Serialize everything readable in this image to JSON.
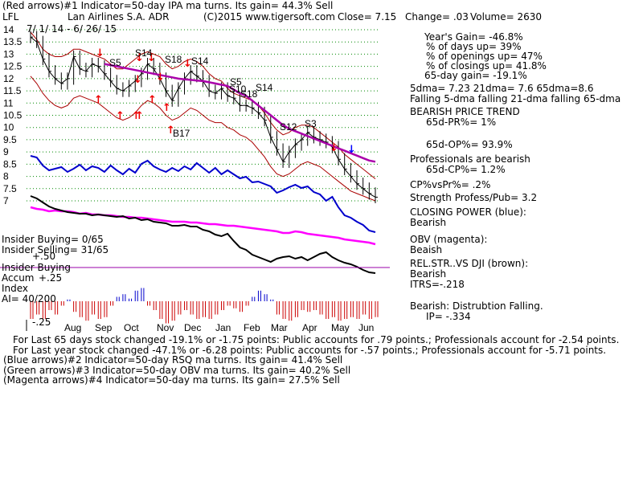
{
  "header": {
    "line1": "(Red arrows)#1 Indicator=50-day IPA ma turns. Its gain= 44.3% Sell",
    "symbol": "LFL",
    "company": "Lan Airlines S.A. ADR",
    "copyright": "(C)2015 www.tigersoft.com",
    "close": "Close=  7.15",
    "change": "Change= .03",
    "volume": "Volume= 2630",
    "date_range": "7/ 1/ 14 - 6/ 26/ 15"
  },
  "right_panel": {
    "years_gain": "Year's Gain= -46.8%",
    "days_up": "% of days up= 39%",
    "openings_up": "% of openings up= 47%",
    "closings_up": "% of closings up= 41.8%",
    "gain_65": "65-day gain= -19.1%",
    "dma": "5dma= 7.23 21dma= 7.6 65dma=8.6",
    "falling": "Falling 5-dma falling 21-dma falling 65-dma",
    "bearish_trend": "BEARISH PRICE TREND",
    "pr65": "65d-PR%= 1%",
    "op65": "65d-OP%= 93.9%",
    "professionals": "Professionals are bearish",
    "cp65": "65d-CP%= 1.2%",
    "cp_vs_pr": "CP%vsPr%= .2%",
    "strength": "Strength Profess/Pub= 3.2",
    "closing_power": "CLOSING POWER (blue):",
    "cp_state": "Bearish",
    "obv": "OBV (magenta):",
    "obv_state": "Beaish",
    "relstr": "REL.STR..VS DJI (brown):",
    "relstr_state": "Bearish",
    "itrs": "ITRS=-.218",
    "distribution": "Bearish: Distrubtion Falling.",
    "ip": "IP= -.334"
  },
  "left_labels": {
    "insider_buying_count": "Insider Buying= 0/65",
    "insider_selling_count": "Insider Selling= 31/65",
    "insider_buying": "Insider Buying",
    "accum": "Accum",
    "index": "Index",
    "ai": "AI= 40/200",
    "plus50": "+.50",
    "plus25": "+.25",
    "minus25": "-.25"
  },
  "footer": {
    "l1": "For Last 65 days stock changed -19.1% or -1.75 points:  Public accounts for  .79 points.;  Professionals account for -2.54 points.",
    "l2": "For Last year stock changed -47.1% or -6.28 points:  Public accounts for -.57 points.;  Professionals account for -5.71 points.",
    "l3": "(Blue arrows)#2 Indicator=50-day RSQ ma turns. Its gain= 41.4% Sell",
    "l4": "(Green arrows)#3 Indicator=50-day OBV ma turns. Its gain= 40.2% Sell",
    "l5": "(Magenta arrows)#4 Indicator=50-day ma turns. Its gain= 27.5% Sell"
  },
  "chart_data": {
    "type": "line",
    "months": [
      "Aug",
      "Sep",
      "Oct",
      "Nov",
      "Dec",
      "Jan",
      "Feb",
      "Mar",
      "Apr",
      "May",
      "Jun"
    ],
    "y_ticks": [
      "14",
      "13.5",
      "13",
      "12.5",
      "12",
      "11.5",
      "11",
      "10.5",
      "10",
      "9.5",
      "9",
      "8.5",
      "8",
      "7.5",
      "7"
    ],
    "ylim": [
      7,
      14
    ],
    "grid": true,
    "signals": [
      "S5",
      "S14",
      "S18",
      "S14",
      "S5",
      "S10",
      "S18",
      "S14",
      "S12",
      "S3",
      "B17"
    ],
    "colors": {
      "price": "#000000",
      "bands": "#aa0000",
      "ma65": "#aa00aa",
      "closing_power": "#0000cc",
      "obv": "#ff00ff",
      "relstr": "#000000",
      "accum_pos": "#0000cc",
      "accum_neg": "#cc0000",
      "grid": "#008800",
      "arrow_red": "#ee0000",
      "arrow_blue": "#0000ff"
    },
    "price_close": [
      13.7,
      13.5,
      12.8,
      12.3,
      12.0,
      11.8,
      12.0,
      12.9,
      12.4,
      12.3,
      12.6,
      12.5,
      12.2,
      11.9,
      11.6,
      11.5,
      11.7,
      11.9,
      12.2,
      12.6,
      12.4,
      12.0,
      11.5,
      11.1,
      11.6,
      12.0,
      12.3,
      12.1,
      11.9,
      11.5,
      11.4,
      11.6,
      11.3,
      11.2,
      10.9,
      10.9,
      10.8,
      10.6,
      10.3,
      9.6,
      9.1,
      8.6,
      9.0,
      9.3,
      9.5,
      9.8,
      9.6,
      9.5,
      9.4,
      9.2,
      8.7,
      8.3,
      8.0,
      7.7,
      7.5,
      7.3,
      7.15
    ],
    "upper_band": [
      13.9,
      13.6,
      13.2,
      13.0,
      12.9,
      12.9,
      13.0,
      13.2,
      13.2,
      13.1,
      13.0,
      12.9,
      12.8,
      12.6,
      12.4,
      12.4,
      12.6,
      12.8,
      13.0,
      13.1,
      13.0,
      12.9,
      12.6,
      12.4,
      12.5,
      12.7,
      12.8,
      12.7,
      12.5,
      12.2,
      12.0,
      11.9,
      11.6,
      11.4,
      11.3,
      11.2,
      11.1,
      10.9,
      10.6,
      10.2,
      9.9,
      9.7,
      9.8,
      10.0,
      10.1,
      10.1,
      10.0,
      9.8,
      9.6,
      9.4,
      9.2,
      8.9,
      8.7,
      8.5,
      8.3,
      8.1,
      7.9
    ],
    "lower_band": [
      12.1,
      11.8,
      11.4,
      11.1,
      10.9,
      10.8,
      10.9,
      11.2,
      11.3,
      11.2,
      11.1,
      11.0,
      10.8,
      10.6,
      10.4,
      10.3,
      10.4,
      10.6,
      10.9,
      11.1,
      11.0,
      10.8,
      10.5,
      10.3,
      10.4,
      10.6,
      10.8,
      10.7,
      10.5,
      10.3,
      10.2,
      10.2,
      10.0,
      9.9,
      9.7,
      9.6,
      9.4,
      9.1,
      8.8,
      8.4,
      8.1,
      8.0,
      8.1,
      8.3,
      8.5,
      8.6,
      8.5,
      8.4,
      8.2,
      8.0,
      7.8,
      7.6,
      7.4,
      7.3,
      7.2,
      7.1,
      7.0
    ],
    "ma65": [
      null,
      null,
      null,
      null,
      null,
      null,
      null,
      null,
      null,
      null,
      null,
      null,
      12.6,
      12.55,
      12.5,
      12.45,
      12.4,
      12.35,
      12.3,
      12.25,
      12.2,
      12.15,
      12.1,
      12.05,
      12.0,
      11.97,
      11.95,
      11.92,
      11.9,
      11.85,
      11.8,
      11.75,
      11.7,
      11.55,
      11.4,
      11.3,
      11.1,
      10.9,
      10.7,
      10.5,
      10.3,
      10.1,
      9.95,
      9.85,
      9.75,
      9.65,
      9.55,
      9.45,
      9.35,
      9.25,
      9.15,
      9.05,
      8.95,
      8.85,
      8.75,
      8.65,
      8.6
    ],
    "closing_power": [
      194,
      196,
      206,
      212,
      210,
      208,
      214,
      210,
      205,
      212,
      207,
      209,
      214,
      206,
      212,
      217,
      210,
      215,
      204,
      200,
      207,
      211,
      214,
      209,
      213,
      207,
      211,
      203,
      209,
      215,
      209,
      217,
      212,
      217,
      222,
      220,
      227,
      226,
      229,
      232,
      240,
      237,
      233,
      230,
      234,
      232,
      239,
      242,
      250,
      245,
      258,
      268,
      271,
      276,
      280,
      287,
      289
    ],
    "obv": [
      258,
      260,
      261,
      263,
      262,
      263,
      263,
      264,
      266,
      265,
      267,
      267,
      268,
      268,
      269,
      270,
      270,
      271,
      271,
      272,
      273,
      274,
      275,
      276,
      276,
      276,
      277,
      277,
      278,
      279,
      279,
      280,
      281,
      281,
      282,
      283,
      284,
      285,
      286,
      287,
      288,
      290,
      290,
      288,
      289,
      291,
      292,
      293,
      294,
      295,
      296,
      298,
      299,
      300,
      301,
      302,
      304
    ],
    "relstr": [
      244,
      247,
      252,
      257,
      260,
      262,
      264,
      265,
      266,
      266,
      268,
      267,
      268,
      269,
      270,
      269,
      272,
      271,
      274,
      273,
      276,
      277,
      278,
      281,
      281,
      280,
      282,
      282,
      286,
      288,
      292,
      294,
      291,
      300,
      308,
      311,
      317,
      320,
      323,
      326,
      322,
      320,
      319,
      322,
      320,
      324,
      320,
      316,
      314,
      320,
      324,
      327,
      329,
      332,
      336,
      339,
      340
    ],
    "accum": [
      -0.2,
      -0.15,
      -0.2,
      -0.1,
      -0.15,
      -0.05,
      0.02,
      -0.12,
      -0.18,
      -0.22,
      -0.15,
      -0.2,
      -0.18,
      -0.05,
      0.05,
      0.08,
      0.03,
      0.12,
      0.15,
      -0.05,
      -0.1,
      -0.2,
      -0.25,
      -0.22,
      -0.15,
      -0.1,
      -0.15,
      -0.2,
      -0.18,
      -0.2,
      -0.15,
      -0.1,
      -0.05,
      -0.08,
      -0.12,
      -0.05,
      0.05,
      0.12,
      0.08,
      0.02,
      -0.15,
      -0.2,
      -0.22,
      -0.18,
      -0.1,
      -0.12,
      -0.1,
      -0.15,
      -0.2,
      -0.18,
      -0.22,
      -0.2,
      -0.18,
      -0.2,
      -0.15,
      -0.2,
      -0.18
    ]
  }
}
